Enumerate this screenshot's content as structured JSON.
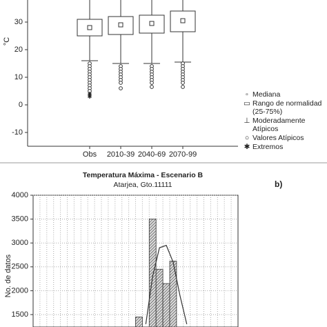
{
  "chart_data": [
    {
      "type": "box",
      "ylabel": "°C",
      "categories": [
        "Obs",
        "2010-39",
        "2040-69",
        "2070-99"
      ],
      "median": [
        28,
        29,
        29.5,
        30.5
      ],
      "q1": [
        25,
        25.5,
        26,
        26.5
      ],
      "q3": [
        31,
        32,
        32.5,
        34
      ],
      "whisker_low": [
        16,
        15,
        15,
        15.5
      ],
      "outliers": [
        [
          15,
          14,
          13,
          12,
          11,
          10,
          9,
          8,
          7,
          6,
          5
        ],
        [
          14,
          13,
          12,
          11,
          10,
          9,
          8,
          6
        ],
        [
          14,
          13,
          12,
          11,
          10,
          9,
          8,
          6.5
        ],
        [
          15,
          14,
          13,
          12,
          11,
          10,
          9,
          8,
          6.5
        ]
      ],
      "extremes": [
        [
          4,
          3.5,
          3
        ],
        [],
        [],
        []
      ],
      "ylim": [
        -15,
        38
      ],
      "yticks": [
        -10,
        0,
        10,
        20,
        30
      ],
      "legend": [
        "Mediana",
        "Rango de normalidad (25-75%)",
        "Moderadamente Atípicos",
        "Valores Atípicos",
        "Extremos"
      ]
    },
    {
      "type": "histogram",
      "title": "Temperatura Máxima - Escenario B",
      "subtitle": "Atarjea, Gto.11111",
      "panel_label": "b)",
      "ylabel": "No. de datos",
      "categories": [
        null,
        null,
        null,
        null,
        null,
        null,
        null,
        null,
        null,
        null,
        null,
        null,
        null,
        null,
        null,
        null,
        null,
        null,
        null,
        null,
        null,
        null,
        null,
        null,
        null,
        null,
        null,
        null,
        null,
        null
      ],
      "values": [
        null,
        null,
        null,
        null,
        null,
        null,
        null,
        null,
        null,
        null,
        null,
        null,
        null,
        null,
        null,
        1450,
        null,
        3500,
        2450,
        2150,
        2620,
        null,
        null,
        null,
        null,
        null,
        null,
        null,
        null,
        null
      ],
      "curve": [
        null,
        null,
        null,
        null,
        null,
        null,
        null,
        null,
        null,
        null,
        null,
        null,
        null,
        null,
        null,
        null,
        1300,
        2300,
        2900,
        2950,
        2600,
        1900,
        1300,
        null,
        null,
        null,
        null,
        null,
        null,
        null
      ],
      "ylim": [
        1240,
        4000
      ],
      "yticks": [
        1500,
        2000,
        2500,
        3000,
        3500,
        4000
      ],
      "grid": true
    }
  ]
}
